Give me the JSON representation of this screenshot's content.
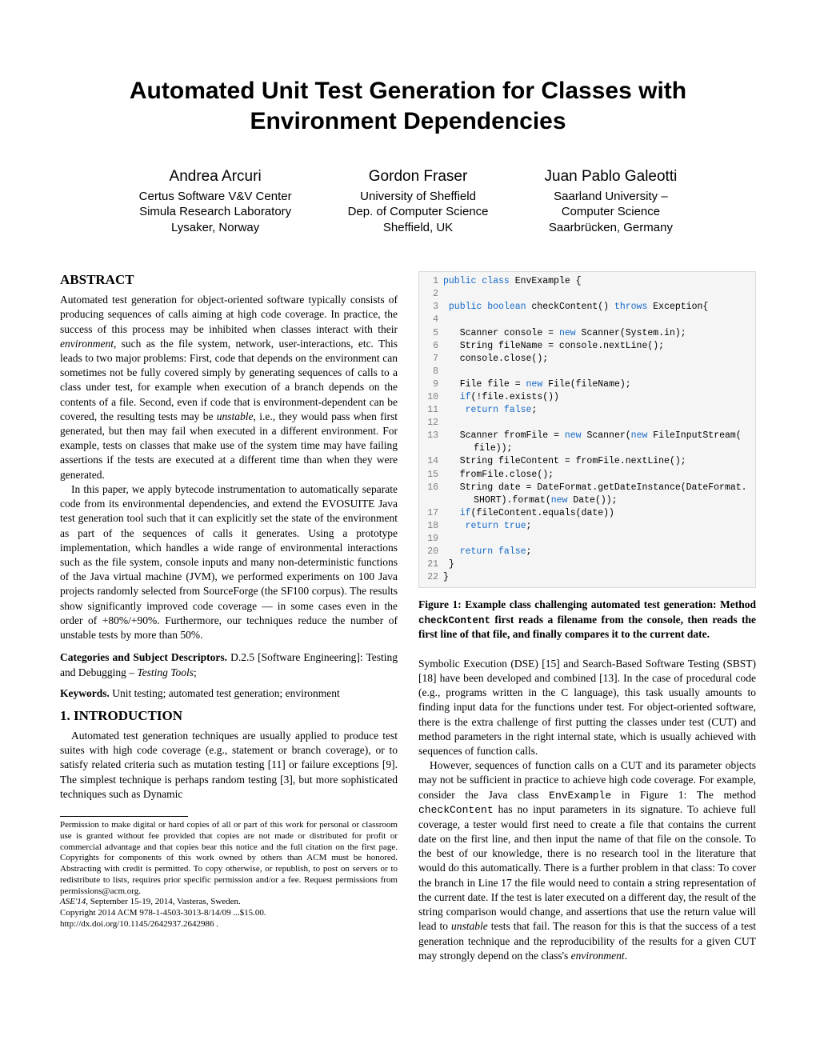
{
  "title": "Automated Unit Test Generation for Classes with Environment Dependencies",
  "authors": [
    {
      "name": "Andrea Arcuri",
      "affil": [
        "Certus Software V&V Center",
        "Simula Research Laboratory",
        "Lysaker, Norway"
      ]
    },
    {
      "name": "Gordon Fraser",
      "affil": [
        "University of Sheffield",
        "Dep. of Computer Science",
        "Sheffield, UK"
      ]
    },
    {
      "name": "Juan Pablo Galeotti",
      "affil": [
        "Saarland University –",
        "Computer Science",
        "Saarbrücken, Germany"
      ]
    }
  ],
  "abstract_heading": "ABSTRACT",
  "abstract_p1": "Automated test generation for object-oriented software typically consists of producing sequences of calls aiming at high code coverage. In practice, the success of this process may be inhibited when classes interact with their ",
  "abstract_p1_em1": "environment",
  "abstract_p1b": ", such as the file system, network, user-interactions, etc. This leads to two major problems: First, code that depends on the environment can sometimes not be fully covered simply by generating sequences of calls to a class under test, for example when execution of a branch depends on the contents of a file. Second, even if code that is environment-dependent can be covered, the resulting tests may be ",
  "abstract_p1_em2": "unstable",
  "abstract_p1c": ", i.e., they would pass when first generated, but then may fail when executed in a different environment. For example, tests on classes that make use of the system time may have failing assertions if the tests are executed at a different time than when they were generated.",
  "abstract_p2a": "In this paper, we apply bytecode instrumentation to automatically separate code from its environmental dependencies, and extend the E",
  "abstract_p2_sc1": "VO",
  "abstract_p2b": "S",
  "abstract_p2_sc2": "UITE",
  "abstract_p2c": " Java test generation tool such that it can explicitly set the state of the environment as part of the sequences of calls it generates. Using a prototype implementation, which handles a wide range of environmental interactions such as the file system, console inputs and many non-deterministic functions of the Java virtual machine (JVM), we performed experiments on 100 Java projects randomly selected from SourceForge (the SF100 corpus). The results show significantly improved code coverage — in some cases even in the order of +80%/+90%. Furthermore, our techniques reduce the number of unstable tests by more than 50%.",
  "cats_runin": "Categories and Subject Descriptors.",
  "cats_text": " D.2.5 [Software Engineering]: Testing and Debugging – ",
  "cats_em": "Testing Tools",
  "cats_end": ";",
  "kws_runin": "Keywords.",
  "kws_text": " Unit testing; automated test generation; environment",
  "intro_heading": "1.    INTRODUCTION",
  "intro_p1": "Automated test generation techniques are usually applied to produce test suites with high code coverage (e.g., statement or branch coverage), or to satisfy related criteria such as mutation testing [11] or failure exceptions [9]. The simplest technique is perhaps random testing [3], but more sophisticated techniques such as Dynamic",
  "copyright_p1": "Permission to make digital or hard copies of all or part of this work for personal or classroom use is granted without fee provided that copies are not made or distributed for profit or commercial advantage and that copies bear this notice and the full citation on the first page. Copyrights for components of this work owned by others than ACM must be honored. Abstracting with credit is permitted. To copy otherwise, or republish, to post on servers or to redistribute to lists, requires prior specific permission and/or a fee. Request permissions from permissions@acm.org.",
  "copyright_venue": "ASE'14, ",
  "copyright_venue_rest": "September 15-19, 2014, Vasteras, Sweden.",
  "copyright_line": "Copyright 2014 ACM 978-1-4503-3013-8/14/09 ...$15.00.",
  "copyright_doi": "http://dx.doi.org/10.1145/2642937.2642986 .",
  "figcap_a": "Figure 1:   Example class challenging automated test generation: Method ",
  "figcap_tt": "checkContent",
  "figcap_b": " first reads a filename from the console, then reads the first line of that file, and finally compares it to the current date.",
  "rcol_p1": "Symbolic Execution (DSE) [15] and Search-Based Software Testing (SBST) [18] have been developed and combined [13]. In the case of procedural code (e.g., programs written in the C language), this task usually amounts to finding input data for the functions under test. For object-oriented software, there is the extra challenge of first putting the classes under test (CUT) and method parameters in the right internal state, which is usually achieved with sequences of function calls.",
  "rcol_p2a": "However, sequences of function calls on a CUT and its parameter objects may not be sufficient in practice to achieve high code coverage. For example, consider the Java class ",
  "rcol_p2_tt1": "EnvExample",
  "rcol_p2b": " in Figure 1: The method ",
  "rcol_p2_tt2": "checkContent",
  "rcol_p2c": " has no input parameters in its signature. To achieve full coverage, a tester would first need to create a file that contains the current date on the first line, and then input the name of that file on the console. To the best of our knowledge, there is no research tool in the literature that would do this automatically. There is a further problem in that class: To cover the branch in Line 17 the file would need to contain a string representation of the current date. If the test is later executed on a different day, the result of the string comparison would change, and assertions that use the return value will lead to ",
  "rcol_p2_em": "unstable",
  "rcol_p2d": " tests that fail. The reason for this is that the success of a test generation technique and the reproducibility of the results for a given CUT may strongly depend on the class's ",
  "rcol_p2_em2": "environment",
  "rcol_p2e": ".",
  "code": {
    "keyword_color": "#1569c7",
    "lineno_color": "#808080",
    "bg": "#f5f5f5",
    "border": "#d9d9d9"
  }
}
